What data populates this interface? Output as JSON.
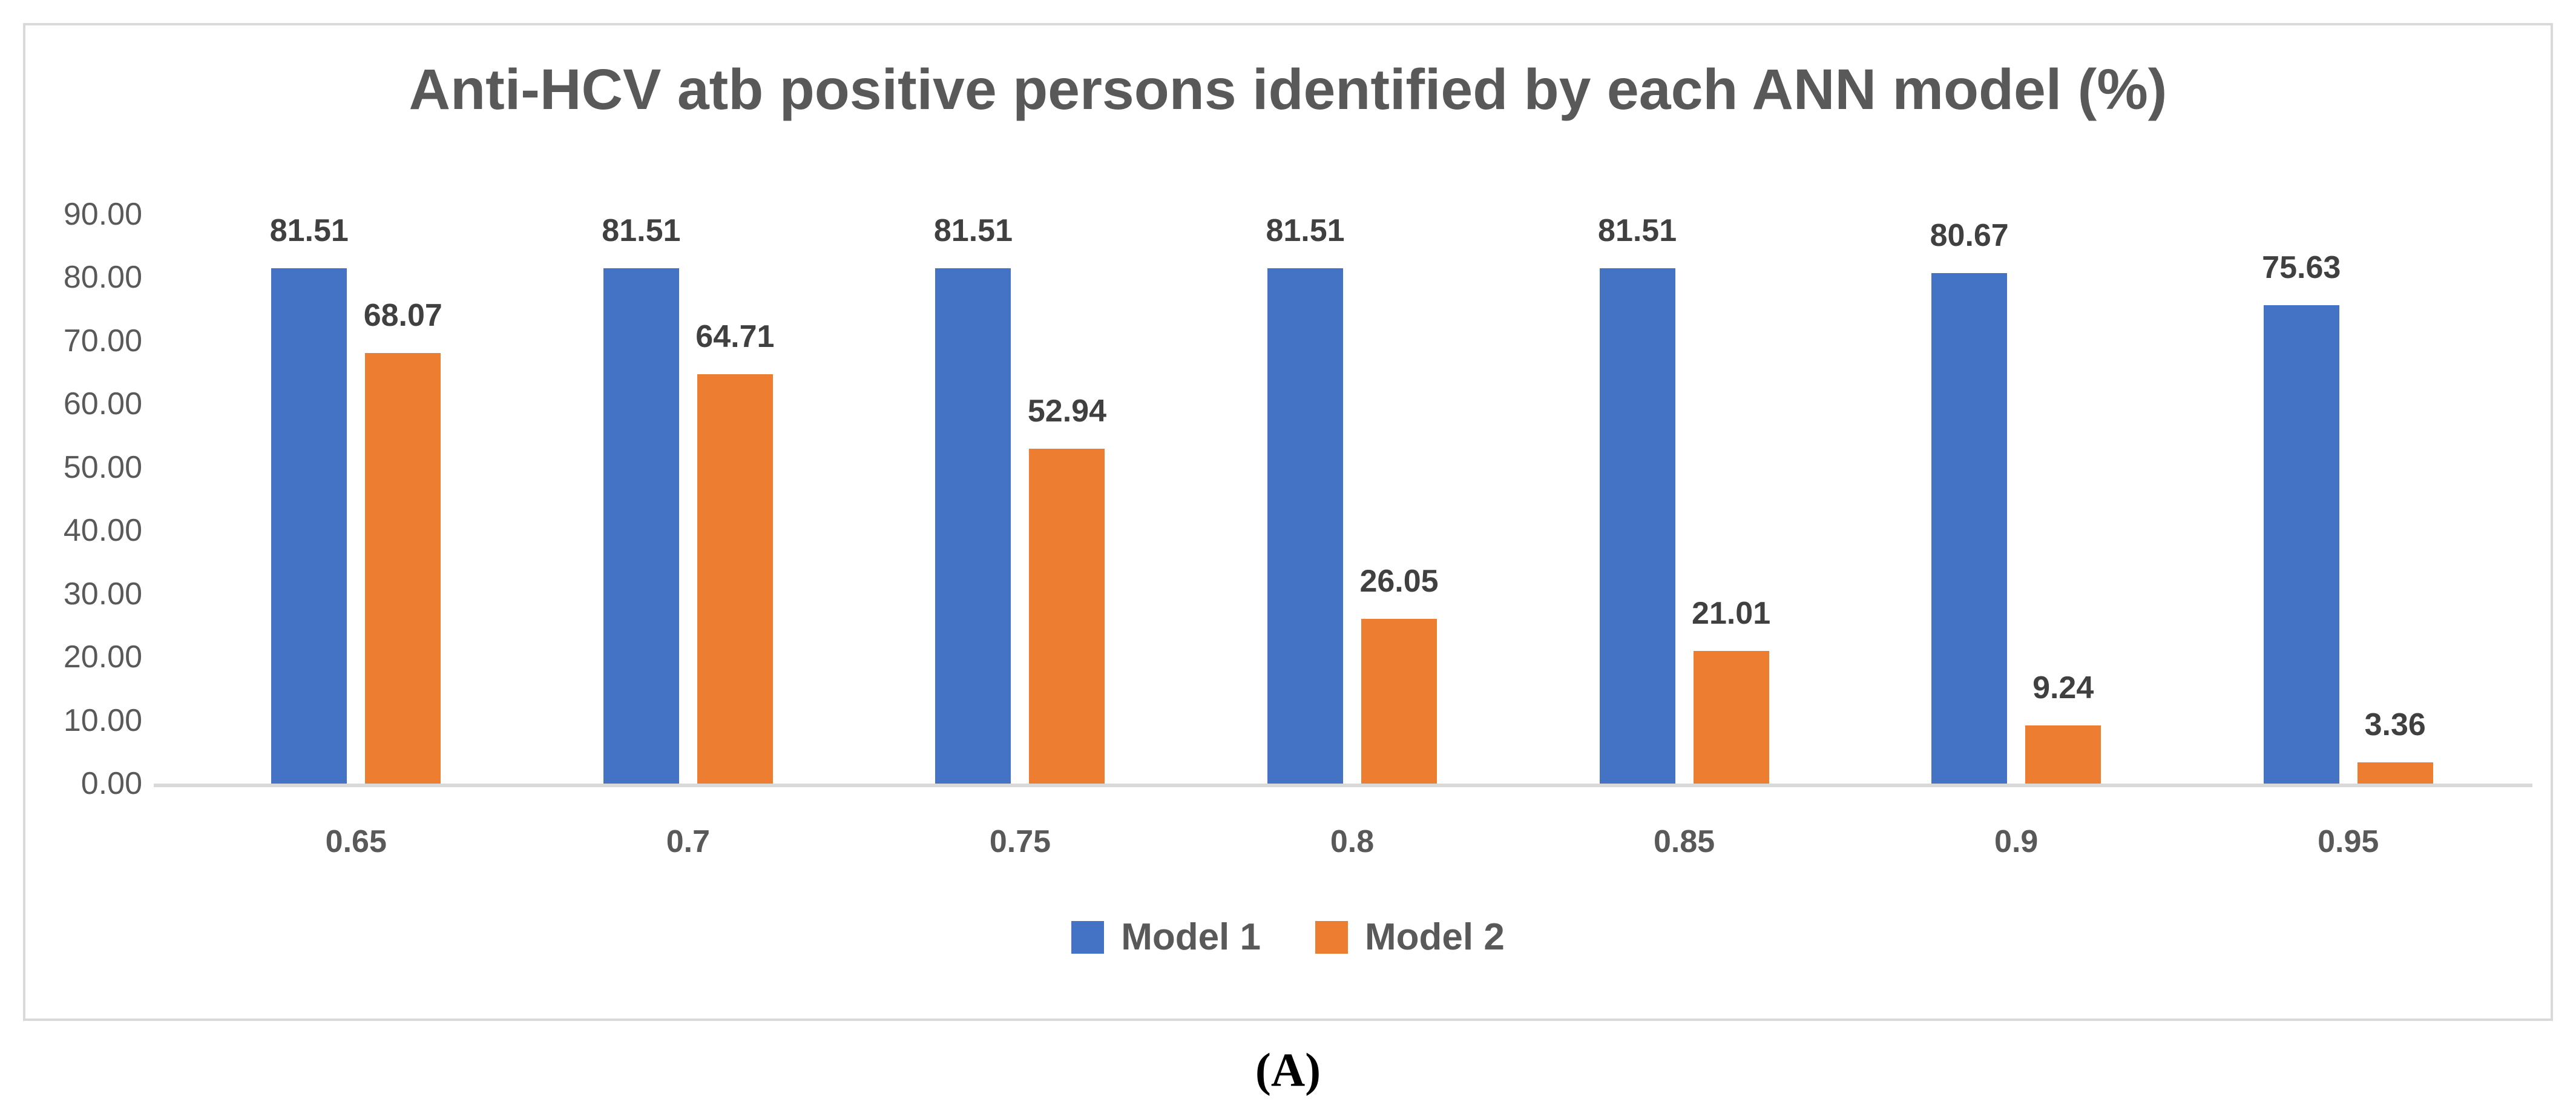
{
  "figure": {
    "caption": "(A)"
  },
  "chart_data": {
    "type": "bar",
    "title": "Anti-HCV atb positive persons identified by each ANN model (%)",
    "categories": [
      "0.65",
      "0.7",
      "0.75",
      "0.8",
      "0.85",
      "0.9",
      "0.95"
    ],
    "series": [
      {
        "name": "Model 1",
        "color": "#4472C4",
        "values": [
          81.51,
          81.51,
          81.51,
          81.51,
          81.51,
          80.67,
          75.63
        ]
      },
      {
        "name": "Model 2",
        "color": "#ED7D31",
        "values": [
          68.07,
          64.71,
          52.94,
          26.05,
          21.01,
          9.24,
          3.36
        ]
      }
    ],
    "y_ticks": [
      "90.00",
      "80.00",
      "70.00",
      "60.00",
      "50.00",
      "40.00",
      "30.00",
      "20.00",
      "10.00",
      "0.00"
    ],
    "ylim": [
      0,
      90
    ],
    "grid": false,
    "legend_position": "bottom",
    "value_labels": "above-bars, 2 decimal places",
    "colors": {
      "title_text": "#595959",
      "tick_text": "#595959",
      "value_label_text": "#404040",
      "axis_line": "#d9d9d9",
      "border": "#d9d9d9",
      "background": "#ffffff"
    }
  }
}
